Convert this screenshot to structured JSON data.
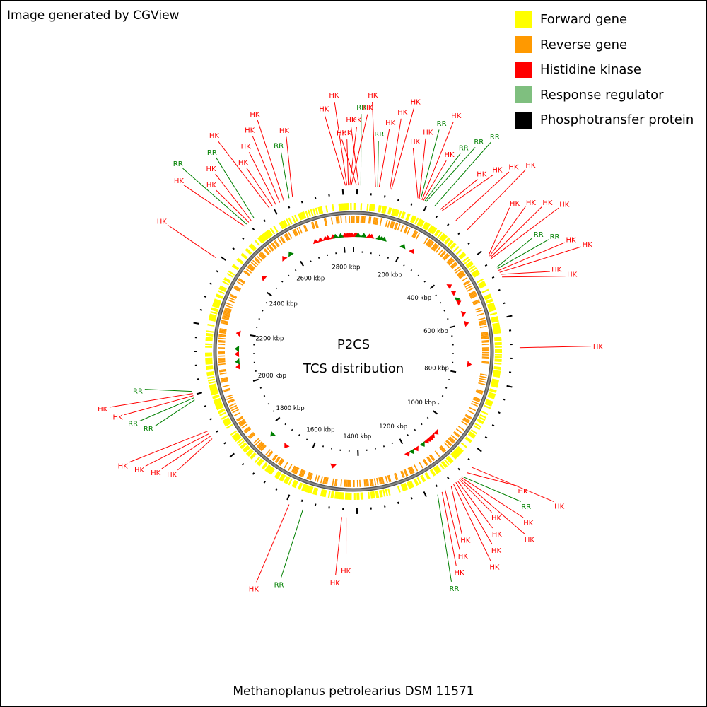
{
  "credit": "Image generated by CGView",
  "legend": [
    {
      "label": "Forward gene",
      "color": "#ffff00"
    },
    {
      "label": "Reverse gene",
      "color": "#ff9900"
    },
    {
      "label": "Histidine kinase",
      "color": "#ff0000"
    },
    {
      "label": "Response regulator",
      "color": "#7fbf7f"
    },
    {
      "label": "Phosphotransfer protein",
      "color": "#000000"
    }
  ],
  "center": {
    "line1": "P2CS",
    "line2": "TCS distribution"
  },
  "genome_name": "Methanoplanus petrolearius DSM 11571",
  "map": {
    "genome_length_kbp": 2840,
    "backbone_color": "#888888",
    "hk_color": "#ff0000",
    "rr_color": "#008000",
    "kbp_labels": [
      "200 kbp",
      "400 kbp",
      "600 kbp",
      "800 kbp",
      "1000 kbp",
      "1200 kbp",
      "1400 kbp",
      "1600 kbp",
      "1800 kbp",
      "2000 kbp",
      "2200 kbp",
      "2400 kbp",
      "2600 kbp",
      "2800 kbp"
    ],
    "kbp_positions": [
      200,
      400,
      600,
      800,
      1000,
      1200,
      1400,
      1600,
      1800,
      2000,
      2200,
      2400,
      2600,
      2800
    ],
    "callouts": [
      {
        "label": "HK",
        "type": "hk",
        "at": 2818
      },
      {
        "label": "HK",
        "type": "hk",
        "at": 2822
      },
      {
        "label": "HK",
        "type": "hk",
        "at": 2826
      },
      {
        "label": "HK",
        "type": "hk",
        "at": 2830
      },
      {
        "label": "HK",
        "type": "hk",
        "at": 2834
      },
      {
        "label": "HK",
        "type": "hk",
        "at": 8
      },
      {
        "label": "HK",
        "type": "hk",
        "at": 14
      },
      {
        "label": "RR",
        "type": "rr",
        "at": 20
      },
      {
        "label": "HK",
        "type": "hk",
        "at": 60
      },
      {
        "label": "RR",
        "type": "rr",
        "at": 66
      },
      {
        "label": "HK",
        "type": "hk",
        "at": 70
      },
      {
        "label": "HK",
        "type": "hk",
        "at": 100
      },
      {
        "label": "HK",
        "type": "hk",
        "at": 104
      },
      {
        "label": "HK",
        "type": "hk",
        "at": 180
      },
      {
        "label": "HK",
        "type": "hk",
        "at": 184
      },
      {
        "label": "RR",
        "type": "rr",
        "at": 188
      },
      {
        "label": "HK",
        "type": "hk",
        "at": 192
      },
      {
        "label": "HK",
        "type": "hk",
        "at": 196
      },
      {
        "label": "RR",
        "type": "rr",
        "at": 200
      },
      {
        "label": "RR",
        "type": "rr",
        "at": 204
      },
      {
        "label": "RR",
        "type": "rr",
        "at": 230
      },
      {
        "label": "HK",
        "type": "hk",
        "at": 248
      },
      {
        "label": "HK",
        "type": "hk",
        "at": 254
      },
      {
        "label": "HK",
        "type": "hk",
        "at": 300
      },
      {
        "label": "HK",
        "type": "hk",
        "at": 340
      },
      {
        "label": "HK",
        "type": "hk",
        "at": 430
      },
      {
        "label": "HK",
        "type": "hk",
        "at": 434
      },
      {
        "label": "HK",
        "type": "hk",
        "at": 438
      },
      {
        "label": "HK",
        "type": "hk",
        "at": 442
      },
      {
        "label": "RR",
        "type": "rr",
        "at": 470
      },
      {
        "label": "RR",
        "type": "rr",
        "at": 474
      },
      {
        "label": "HK",
        "type": "hk",
        "at": 480
      },
      {
        "label": "HK",
        "type": "hk",
        "at": 486
      },
      {
        "label": "HK",
        "type": "hk",
        "at": 492
      },
      {
        "label": "HK",
        "type": "hk",
        "at": 500
      },
      {
        "label": "HK",
        "type": "hk",
        "at": 700
      },
      {
        "label": "HK",
        "type": "hk",
        "at": 1060
      },
      {
        "label": "HK",
        "type": "hk",
        "at": 1080
      },
      {
        "label": "RR",
        "type": "rr",
        "at": 1096
      },
      {
        "label": "HK",
        "type": "hk",
        "at": 1100
      },
      {
        "label": "HK",
        "type": "hk",
        "at": 1104
      },
      {
        "label": "HK",
        "type": "hk",
        "at": 1108
      },
      {
        "label": "HK",
        "type": "hk",
        "at": 1114
      },
      {
        "label": "HK",
        "type": "hk",
        "at": 1120
      },
      {
        "label": "HK",
        "type": "hk",
        "at": 1128
      },
      {
        "label": "HK",
        "type": "hk",
        "at": 1136
      },
      {
        "label": "HK",
        "type": "hk",
        "at": 1156
      },
      {
        "label": "HK",
        "type": "hk",
        "at": 1166
      },
      {
        "label": "RR",
        "type": "rr",
        "at": 1180
      },
      {
        "label": "HK",
        "type": "hk",
        "at": 1440
      },
      {
        "label": "HK",
        "type": "hk",
        "at": 1452
      },
      {
        "label": "RR",
        "type": "rr",
        "at": 1560
      },
      {
        "label": "HK",
        "type": "hk",
        "at": 1600
      },
      {
        "label": "HK",
        "type": "hk",
        "at": 1880
      },
      {
        "label": "HK",
        "type": "hk",
        "at": 1888
      },
      {
        "label": "HK",
        "type": "hk",
        "at": 1896
      },
      {
        "label": "HK",
        "type": "hk",
        "at": 1904
      },
      {
        "label": "RR",
        "type": "rr",
        "at": 1996
      },
      {
        "label": "RR",
        "type": "rr",
        "at": 2002
      },
      {
        "label": "HK",
        "type": "hk",
        "at": 2008
      },
      {
        "label": "HK",
        "type": "hk",
        "at": 2014
      },
      {
        "label": "RR",
        "type": "rr",
        "at": 2020
      },
      {
        "label": "HK",
        "type": "hk",
        "at": 2400
      },
      {
        "label": "HK",
        "type": "hk",
        "at": 2516
      },
      {
        "label": "RR",
        "type": "rr",
        "at": 2524
      },
      {
        "label": "HK",
        "type": "hk",
        "at": 2532
      },
      {
        "label": "HK",
        "type": "hk",
        "at": 2540
      },
      {
        "label": "RR",
        "type": "rr",
        "at": 2550
      },
      {
        "label": "HK",
        "type": "hk",
        "at": 2600
      },
      {
        "label": "HK",
        "type": "hk",
        "at": 2610
      },
      {
        "label": "HK",
        "type": "hk",
        "at": 2620
      },
      {
        "label": "HK",
        "type": "hk",
        "at": 2632
      },
      {
        "label": "HK",
        "type": "hk",
        "at": 2644
      },
      {
        "label": "RR",
        "type": "rr",
        "at": 2660
      },
      {
        "label": "HK",
        "type": "hk",
        "at": 2670
      }
    ],
    "tcs_markers": [
      {
        "type": "hk",
        "at": 2806
      },
      {
        "type": "hk",
        "at": 2812
      },
      {
        "type": "hk",
        "at": 2818
      },
      {
        "type": "hk",
        "at": 2826
      },
      {
        "type": "hk",
        "at": 2834
      },
      {
        "type": "hk",
        "at": 6
      },
      {
        "type": "hk",
        "at": 12
      },
      {
        "type": "rr",
        "at": 18
      },
      {
        "type": "rr",
        "at": 40
      },
      {
        "type": "hk",
        "at": 62
      },
      {
        "type": "hk",
        "at": 70
      },
      {
        "type": "rr",
        "at": 100
      },
      {
        "type": "rr",
        "at": 110
      },
      {
        "type": "rr",
        "at": 120
      },
      {
        "type": "rr",
        "at": 200
      },
      {
        "type": "hk",
        "at": 240
      },
      {
        "type": "hk",
        "at": 440
      },
      {
        "type": "hk",
        "at": 470
      },
      {
        "type": "rr",
        "at": 500
      },
      {
        "type": "rr",
        "at": 506
      },
      {
        "type": "hk",
        "at": 512
      },
      {
        "type": "hk",
        "at": 560
      },
      {
        "type": "hk",
        "at": 600
      },
      {
        "type": "hk",
        "at": 760
      },
      {
        "type": "hk",
        "at": 1060
      },
      {
        "type": "hk",
        "at": 1080
      },
      {
        "type": "hk",
        "at": 1090
      },
      {
        "type": "hk",
        "at": 1100
      },
      {
        "type": "hk",
        "at": 1110
      },
      {
        "type": "rr",
        "at": 1130
      },
      {
        "type": "hk",
        "at": 1160
      },
      {
        "type": "rr",
        "at": 1180
      },
      {
        "type": "hk",
        "at": 1200
      },
      {
        "type": "hk",
        "at": 1500
      },
      {
        "type": "hk",
        "at": 1700
      },
      {
        "type": "rr",
        "at": 1770
      },
      {
        "type": "hk",
        "at": 2070
      },
      {
        "type": "rr",
        "at": 2090
      },
      {
        "type": "hk",
        "at": 2120
      },
      {
        "type": "rr",
        "at": 2140
      },
      {
        "type": "hk",
        "at": 2200
      },
      {
        "type": "hk",
        "at": 2440
      },
      {
        "type": "hk",
        "at": 2550
      },
      {
        "type": "rr",
        "at": 2580
      },
      {
        "type": "hk",
        "at": 2690
      },
      {
        "type": "hk",
        "at": 2710
      },
      {
        "type": "hk",
        "at": 2730
      },
      {
        "type": "hk",
        "at": 2740
      },
      {
        "type": "hk",
        "at": 2760
      },
      {
        "type": "rr",
        "at": 2770
      },
      {
        "type": "rr",
        "at": 2790
      }
    ]
  }
}
